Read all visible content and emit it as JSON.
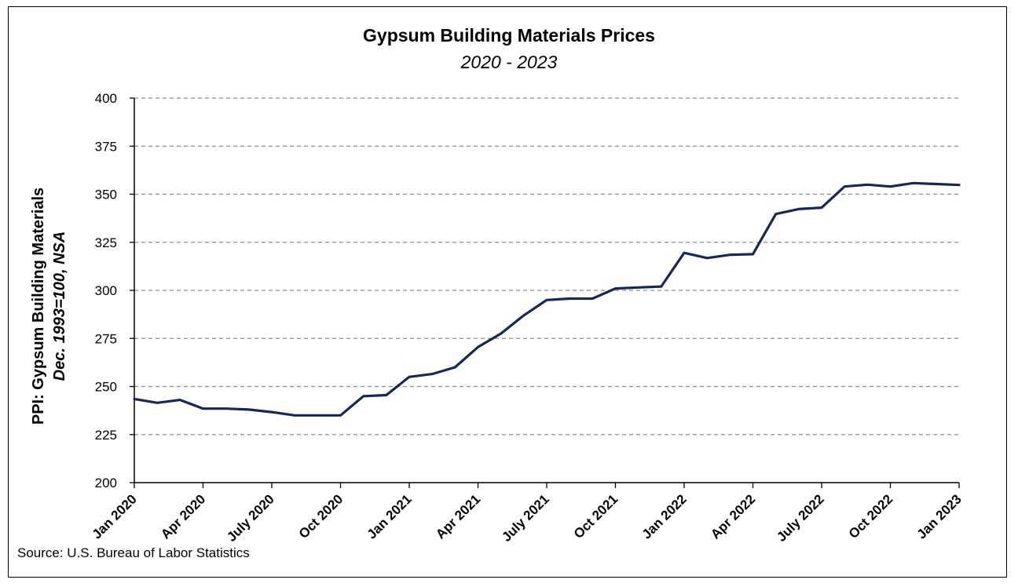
{
  "chart_data": {
    "type": "line",
    "title": "Gypsum Building Materials Prices",
    "subtitle": "2020 - 2023",
    "ylabel_line1": "PPI: Gypsum Building Materials",
    "ylabel_line2": "Dec. 1993=100, NSA",
    "xlabel": "",
    "ylim": [
      200,
      400
    ],
    "yticks": [
      200,
      225,
      250,
      275,
      300,
      325,
      350,
      375,
      400
    ],
    "xtick_labels": [
      "Jan 2020",
      "Apr 2020",
      "July 2020",
      "Oct 2020",
      "Jan 2021",
      "Apr 2021",
      "July 2021",
      "Oct 2021",
      "Jan 2022",
      "Apr 2022",
      "July 2022",
      "Oct 2022",
      "Jan 2023"
    ],
    "grid": true,
    "line_color": "#14285a",
    "series": [
      {
        "x": [
          "Jan 2020",
          "Feb 2020",
          "Mar 2020",
          "Apr 2020",
          "May 2020",
          "Jun 2020",
          "Jul 2020",
          "Aug 2020",
          "Sep 2020",
          "Oct 2020",
          "Nov 2020",
          "Dec 2020",
          "Jan 2021",
          "Feb 2021",
          "Mar 2021",
          "Apr 2021",
          "May 2021",
          "Jun 2021",
          "Jul 2021",
          "Aug 2021",
          "Sep 2021",
          "Oct 2021",
          "Nov 2021",
          "Dec 2021",
          "Jan 2022",
          "Feb 2022",
          "Mar 2022",
          "Apr 2022",
          "May 2022",
          "Jun 2022",
          "Jul 2022",
          "Aug 2022",
          "Sep 2022",
          "Oct 2022",
          "Nov 2022",
          "Dec 2022",
          "Jan 2023"
        ],
        "values": [
          243.5,
          241.5,
          243,
          238.5,
          238.5,
          238,
          236.7,
          235,
          235,
          235,
          245,
          245.5,
          255,
          256.5,
          260,
          270.5,
          277.5,
          287,
          295,
          295.7,
          295.7,
          301,
          301.5,
          302,
          319.5,
          316.8,
          318.5,
          318.8,
          339.7,
          342.3,
          343,
          354,
          355,
          354,
          355.8,
          355.3,
          354.8
        ]
      }
    ]
  },
  "source": "Source: U.S. Bureau of Labor Statistics"
}
